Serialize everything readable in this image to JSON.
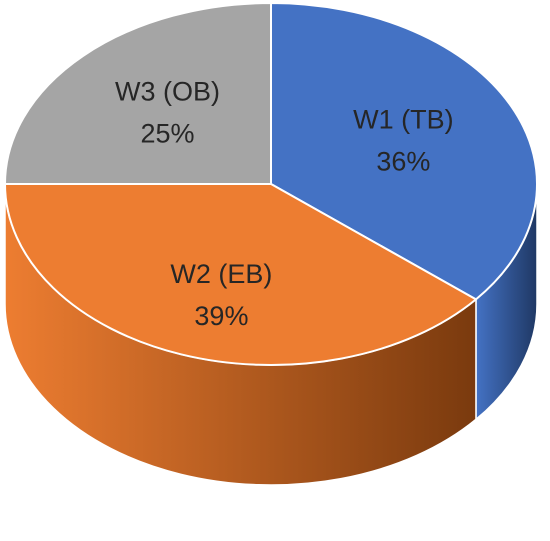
{
  "chart_data": {
    "type": "pie",
    "style": "3d",
    "title": "",
    "slices": [
      {
        "name": "W1 (TB)",
        "value": 36,
        "value_label": "36%",
        "color": "#4472C4",
        "side_dark": "#1F3864"
      },
      {
        "name": "W2 (EB)",
        "value": 39,
        "value_label": "39%",
        "color": "#ED7D31",
        "side_dark": "#7A3A0E"
      },
      {
        "name": "W3 (OB)",
        "value": 25,
        "value_label": "25%",
        "color": "#A5A5A5",
        "side_dark": "#5A5A5A"
      }
    ],
    "legend": "none",
    "labels_inside": true
  }
}
